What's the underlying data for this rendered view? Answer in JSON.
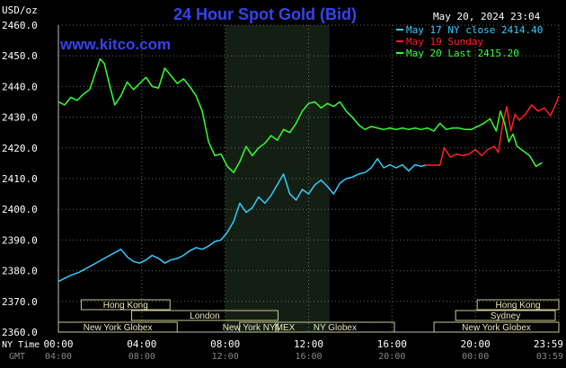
{
  "chart_data": {
    "type": "line",
    "title": "24 Hour Spot Gold (Bid)",
    "watermark": "www.kitco.com",
    "timestamp": "May 20, 2024 23:04",
    "ylabel": "USD/oz",
    "ylim": [
      2360,
      2460
    ],
    "yticks": [
      "2460.0",
      "2450.0",
      "2440.0",
      "2430.0",
      "2420.0",
      "2410.0",
      "2400.0",
      "2390.0",
      "2380.0",
      "2370.0",
      "2360.0"
    ],
    "xlim": [
      0,
      24
    ],
    "x_row_label": "NY Time",
    "x_ticks": [
      "00:00",
      "04:00",
      "08:00",
      "12:00",
      "16:00",
      "20:00",
      "23:59"
    ],
    "gmt_row_label": "GMT",
    "gmt_ticks": [
      "04:00",
      "08:00",
      "12:00",
      "16:00",
      "20:00",
      "00:00",
      "03:59"
    ],
    "legend": [
      {
        "label": "May 17 NY close 2414.40",
        "color": "#33ccff"
      },
      {
        "label": "May 19 Sunday",
        "color": "#ff2020"
      },
      {
        "label": "May 20 Last 2415.20",
        "color": "#33ff33"
      }
    ],
    "sessions_left": [
      {
        "label": "Hong Kong",
        "start": 2.3,
        "end": 12.3
      },
      {
        "label": "London",
        "start": 0,
        "end": 5.6
      },
      {
        "label": "London",
        "start": 8,
        "end": 25.1
      },
      {
        "label": "New York Globex",
        "start": 0,
        "end": 11.9
      },
      {
        "label": "New York NYMEX",
        "start": 20.4,
        "end": 23.0
      },
      {
        "label": "NY Globex",
        "start": 0,
        "end": 26.2
      }
    ],
    "sessions": [
      {
        "label": "Hong Kong",
        "row": 0,
        "start": 1.9,
        "end": 9.3
      },
      {
        "label": "London",
        "row": 1,
        "start": 6.1,
        "end": 18.3
      },
      {
        "label": "New York Globex",
        "row": 2,
        "start": 0.0,
        "end": 9.9
      },
      {
        "label": "New York NYMEX",
        "row": 2,
        "start": 15.1,
        "end": 18.3
      },
      {
        "label": "NY Globex",
        "row": 2,
        "start": 18.1,
        "end": 28.0
      },
      {
        "label": "Hong Kong",
        "row": 0,
        "start": 34.9,
        "end": 41.7
      },
      {
        "label": "Sydney",
        "row": 1,
        "start": 33.1,
        "end": 41.4
      },
      {
        "label": "New York Globex",
        "row": 2,
        "start": 31.3,
        "end": 41.7
      }
    ],
    "session_labels": [
      "Hong Kong",
      "London",
      "New York Globex",
      "New York NYMEX",
      "NY Globex",
      "Hong Kong",
      "Sydney",
      "New York Globex"
    ],
    "nymex_shade": [
      8.0,
      13.0
    ],
    "series": [
      {
        "name": "May 17 NY close 2414.40",
        "color": "#33ccff",
        "x": [
          0,
          0.3,
          0.6,
          1.0,
          1.4,
          1.8,
          2.2,
          2.6,
          3.0,
          3.3,
          3.6,
          3.9,
          4.2,
          4.5,
          4.8,
          5.1,
          5.4,
          5.7,
          6.0,
          6.3,
          6.6,
          6.9,
          7.2,
          7.5,
          7.8,
          8.1,
          8.4,
          8.7,
          9.0,
          9.3,
          9.6,
          9.9,
          10.2,
          10.5,
          10.8,
          11.1,
          11.4,
          11.7,
          12.0,
          12.3,
          12.6,
          12.9,
          13.2,
          13.5,
          13.8,
          14.1,
          14.4,
          14.7,
          15.0,
          15.3,
          15.6,
          15.9,
          16.2,
          16.5,
          16.8,
          17.1,
          17.4,
          17.6
        ],
        "y": [
          2376.5,
          2377.5,
          2378.5,
          2379.5,
          2381.0,
          2382.5,
          2384.0,
          2385.5,
          2387.0,
          2384.5,
          2383.0,
          2382.5,
          2383.5,
          2385.0,
          2384.0,
          2382.5,
          2383.5,
          2384.0,
          2385.0,
          2386.5,
          2387.5,
          2387.0,
          2388.0,
          2389.5,
          2390.0,
          2392.5,
          2396.0,
          2402.0,
          2399.0,
          2400.5,
          2404.0,
          2402.0,
          2404.5,
          2408.0,
          2411.5,
          2405.0,
          2403.0,
          2406.5,
          2405.0,
          2408.0,
          2409.5,
          2407.5,
          2405.0,
          2408.5,
          2410.0,
          2410.5,
          2411.5,
          2412.0,
          2413.5,
          2416.5,
          2413.5,
          2414.5,
          2413.5,
          2414.5,
          2412.5,
          2414.5,
          2414.0,
          2414.4
        ]
      },
      {
        "name": "May 19 Sunday",
        "color": "#ff2020",
        "x": [
          17.6,
          18.0,
          18.3,
          18.5,
          18.8,
          19.1,
          19.4,
          19.7,
          20.0,
          20.3,
          20.6,
          20.9,
          21.1,
          21.3,
          21.5,
          21.7,
          21.9,
          22.1,
          22.4,
          22.7,
          23.0,
          23.3,
          23.6,
          23.9,
          24.0
        ],
        "y": [
          2414.4,
          2414.4,
          2414.4,
          2420.0,
          2417.0,
          2418.0,
          2417.5,
          2418.0,
          2419.5,
          2417.5,
          2419.5,
          2420.5,
          2418.5,
          2427.5,
          2433.5,
          2425.5,
          2431.0,
          2429.0,
          2431.0,
          2434.0,
          2432.0,
          2433.0,
          2430.5,
          2435.0,
          2437.0
        ]
      },
      {
        "name": "May 20 Last 2415.20",
        "color": "#33ff33",
        "x": [
          0,
          0.3,
          0.6,
          0.9,
          1.2,
          1.5,
          1.8,
          2.0,
          2.2,
          2.4,
          2.7,
          3.0,
          3.3,
          3.6,
          3.9,
          4.2,
          4.5,
          4.8,
          5.1,
          5.4,
          5.7,
          6.0,
          6.3,
          6.6,
          6.9,
          7.2,
          7.5,
          7.8,
          8.1,
          8.4,
          8.7,
          9.0,
          9.3,
          9.6,
          9.9,
          10.2,
          10.5,
          10.8,
          11.1,
          11.4,
          11.7,
          12.0,
          12.3,
          12.6,
          12.9,
          13.2,
          13.5,
          13.8,
          14.1,
          14.4,
          14.7,
          15.0,
          15.3,
          15.6,
          15.9,
          16.2,
          16.5,
          16.8,
          17.1,
          17.4,
          17.7,
          18.0,
          18.3,
          18.6,
          18.9,
          19.2,
          19.5,
          19.8,
          20.1,
          20.4,
          20.7,
          21.0,
          21.2,
          21.4,
          21.6,
          21.8,
          22.0,
          22.3,
          22.6,
          22.9,
          23.2
        ],
        "y": [
          2435.0,
          2434.0,
          2436.5,
          2435.5,
          2437.5,
          2439.0,
          2445.0,
          2449.0,
          2447.5,
          2442.0,
          2434.0,
          2437.0,
          2441.5,
          2439.0,
          2441.0,
          2443.0,
          2440.0,
          2439.5,
          2446.0,
          2443.5,
          2441.0,
          2442.5,
          2440.0,
          2437.0,
          2432.0,
          2422.0,
          2417.5,
          2418.0,
          2414.0,
          2412.0,
          2415.5,
          2420.5,
          2417.5,
          2420.0,
          2421.5,
          2424.0,
          2422.5,
          2426.0,
          2425.0,
          2428.0,
          2432.0,
          2434.5,
          2435.0,
          2433.0,
          2434.5,
          2433.5,
          2435.0,
          2432.0,
          2430.0,
          2427.5,
          2426.0,
          2427.0,
          2426.5,
          2426.0,
          2426.5,
          2426.0,
          2426.5,
          2426.0,
          2426.5,
          2426.0,
          2426.5,
          2425.5,
          2428.0,
          2426.0,
          2426.5,
          2426.5,
          2426.0,
          2426.0,
          2427.0,
          2428.0,
          2429.5,
          2425.5,
          2432.0,
          2428.0,
          2422.0,
          2424.5,
          2420.5,
          2419.0,
          2417.5,
          2414.0,
          2415.2
        ]
      }
    ]
  }
}
